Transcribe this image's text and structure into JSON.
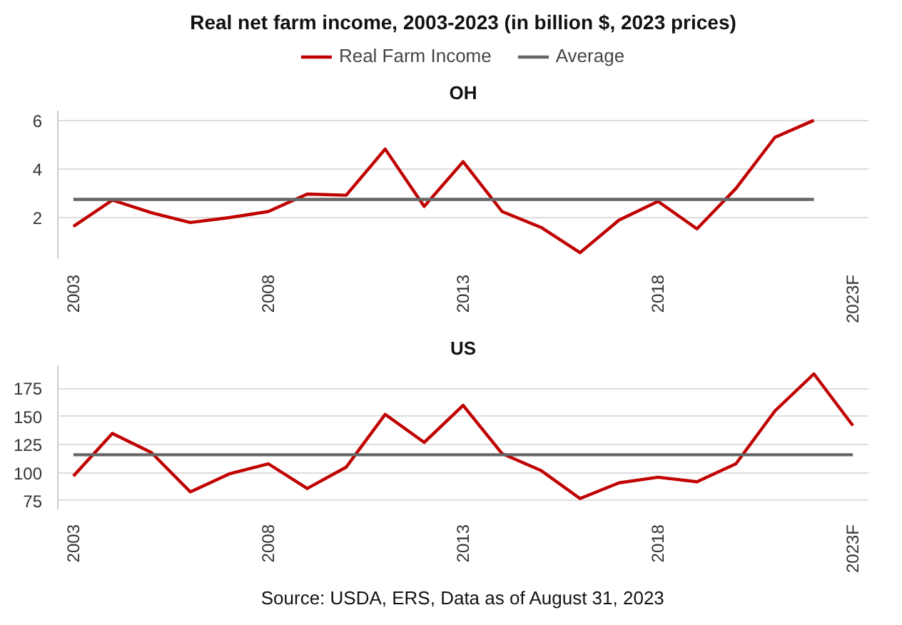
{
  "chart_data": [
    {
      "type": "line",
      "title": "Real net farm income, 2003-2023 (in billion $, 2023 prices)",
      "subtitle": "OH",
      "legend": "top",
      "grid": "y",
      "line_style": "solid",
      "xlim": [
        2002.6,
        2023.4
      ],
      "xticks": [
        2003,
        2008,
        2013,
        2018,
        {
          "value": 2023,
          "label": "2023F"
        }
      ],
      "ylim": [
        0.3,
        6.4
      ],
      "yticks": [
        2,
        4,
        6
      ],
      "series": [
        {
          "name": "Real Farm Income",
          "color": "#c00000",
          "x": [
            2003,
            2004,
            2005,
            2006,
            2007,
            2008,
            2009,
            2010,
            2011,
            2012,
            2013,
            2014,
            2015,
            2016,
            2017,
            2018,
            2019,
            2020,
            2021,
            2022
          ],
          "values": [
            1.64,
            2.72,
            2.2,
            1.8,
            2.0,
            2.25,
            2.97,
            2.92,
            4.82,
            2.46,
            4.3,
            2.25,
            1.6,
            0.56,
            1.9,
            2.67,
            1.54,
            3.2,
            5.3,
            6.0
          ]
        },
        {
          "name": "Average",
          "color": "#666666",
          "x": [
            2003,
            2022
          ],
          "values": [
            2.75,
            2.75
          ]
        }
      ]
    },
    {
      "type": "line",
      "title": "US",
      "grid": "y",
      "line_style": "solid",
      "xlim": [
        2002.6,
        2023.4
      ],
      "xticks": [
        2003,
        2008,
        2013,
        2018,
        {
          "value": 2023,
          "label": "2023F"
        }
      ],
      "ylim": [
        68,
        195
      ],
      "yticks": [
        75,
        100,
        125,
        150,
        175
      ],
      "annotations": [
        "Source: USDA, ERS, Data as of August 31, 2023"
      ],
      "series": [
        {
          "color": "#c00000",
          "x": [
            2003,
            2004,
            2005,
            2006,
            2007,
            2008,
            2009,
            2010,
            2011,
            2012,
            2013,
            2014,
            2015,
            2016,
            2017,
            2018,
            2019,
            2020,
            2021,
            2022,
            2023
          ],
          "values": [
            97,
            135,
            118,
            83,
            99,
            108,
            86,
            105,
            152,
            127,
            160,
            117,
            102,
            77,
            91,
            96,
            92,
            108,
            155,
            188,
            142
          ]
        },
        {
          "color": "#666666",
          "x": [
            2003,
            2023
          ],
          "values": [
            116,
            116
          ]
        }
      ]
    }
  ]
}
